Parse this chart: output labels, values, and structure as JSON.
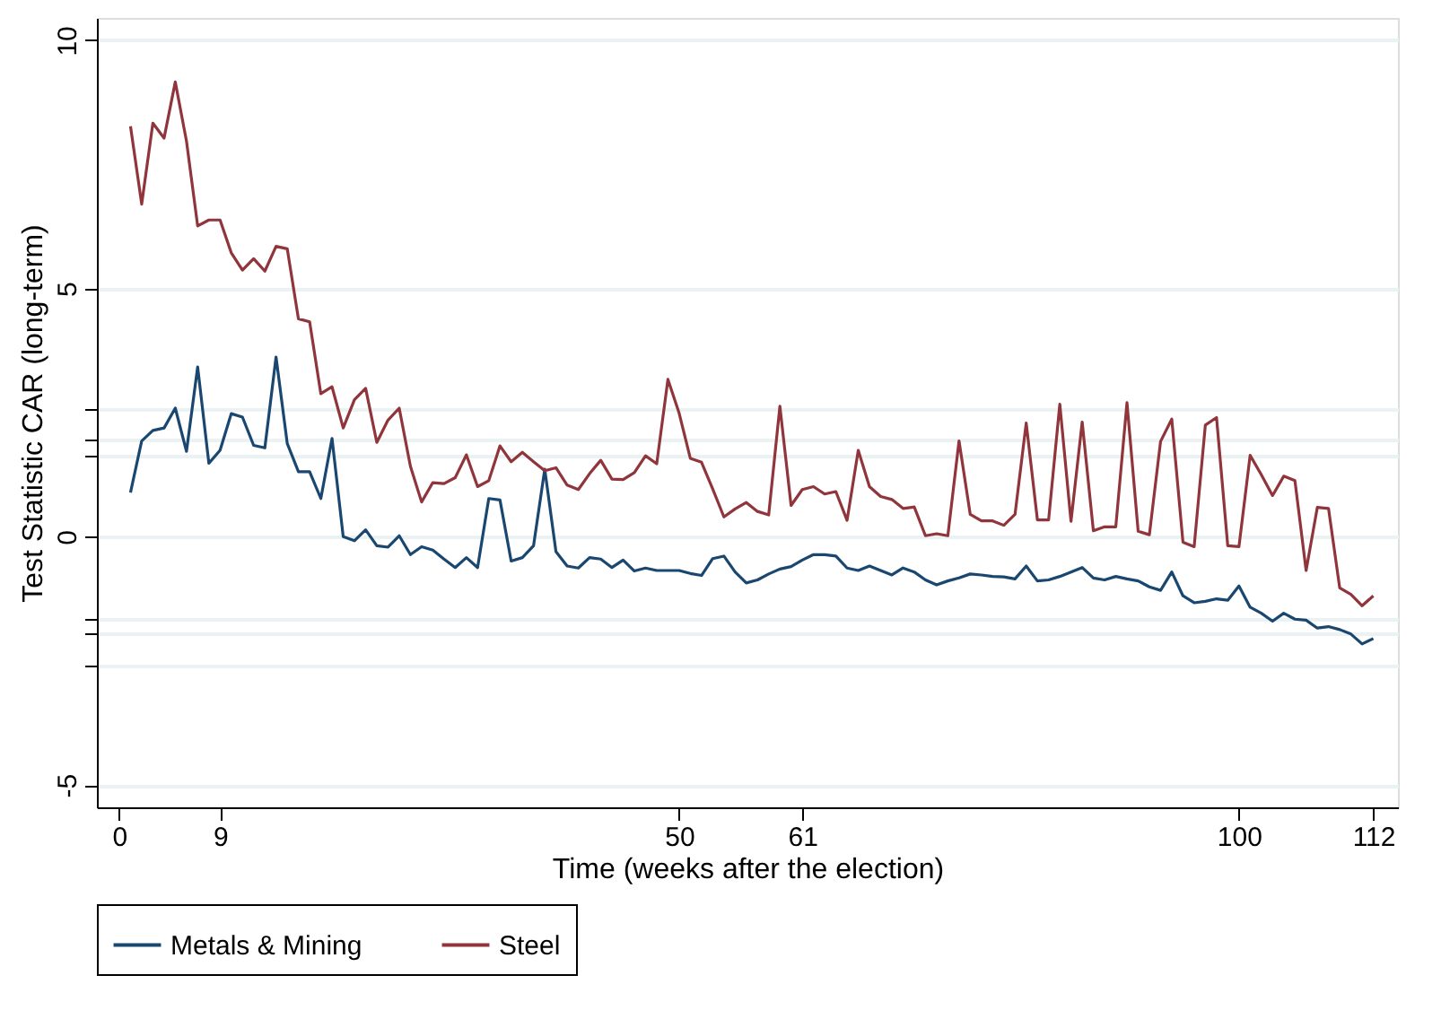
{
  "chart_data": {
    "type": "line",
    "xlabel": "Time (weeks after the election)",
    "ylabel": "Test Statistic CAR (long-term)",
    "x": [
      1,
      2,
      3,
      4,
      5,
      6,
      7,
      8,
      9,
      10,
      11,
      12,
      13,
      14,
      15,
      16,
      17,
      18,
      19,
      20,
      21,
      22,
      23,
      24,
      25,
      26,
      27,
      28,
      29,
      30,
      31,
      32,
      33,
      34,
      35,
      36,
      37,
      38,
      39,
      40,
      41,
      42,
      43,
      44,
      45,
      46,
      47,
      48,
      49,
      50,
      51,
      52,
      53,
      54,
      55,
      56,
      57,
      58,
      59,
      60,
      61,
      62,
      63,
      64,
      65,
      66,
      67,
      68,
      69,
      70,
      71,
      72,
      73,
      74,
      75,
      76,
      77,
      78,
      79,
      80,
      81,
      82,
      83,
      84,
      85,
      86,
      87,
      88,
      89,
      90,
      91,
      92,
      93,
      94,
      95,
      96,
      97,
      98,
      99,
      100,
      101,
      102,
      103,
      104,
      105,
      106,
      107,
      108,
      109,
      110,
      111,
      112
    ],
    "series": [
      {
        "name": "Metals & Mining",
        "color": "#1a476f",
        "values": [
          0.89,
          1.93,
          2.14,
          2.19,
          2.59,
          1.72,
          3.42,
          1.48,
          1.74,
          2.48,
          2.41,
          1.84,
          1.79,
          3.62,
          1.88,
          1.31,
          1.31,
          0.77,
          1.98,
          0.0,
          -0.08,
          0.14,
          -0.18,
          -0.21,
          0.02,
          -0.36,
          -0.2,
          -0.27,
          -0.45,
          -0.62,
          -0.42,
          -0.62,
          0.77,
          0.74,
          -0.49,
          -0.42,
          -0.18,
          1.36,
          -0.3,
          -0.59,
          -0.63,
          -0.42,
          -0.45,
          -0.62,
          -0.47,
          -0.69,
          -0.63,
          -0.68,
          -0.68,
          -0.68,
          -0.74,
          -0.78,
          -0.44,
          -0.39,
          -0.71,
          -0.93,
          -0.87,
          -0.75,
          -0.65,
          -0.6,
          -0.47,
          -0.36,
          -0.36,
          -0.39,
          -0.63,
          -0.68,
          -0.59,
          -0.68,
          -0.77,
          -0.63,
          -0.71,
          -0.87,
          -0.97,
          -0.89,
          -0.83,
          -0.75,
          -0.77,
          -0.8,
          -0.81,
          -0.85,
          -0.59,
          -0.89,
          -0.87,
          -0.8,
          -0.71,
          -0.62,
          -0.83,
          -0.87,
          -0.8,
          -0.85,
          -0.89,
          -1.01,
          -1.08,
          -0.71,
          -1.19,
          -1.33,
          -1.3,
          -1.25,
          -1.28,
          -0.99,
          -1.42,
          -1.54,
          -1.7,
          -1.54,
          -1.66,
          -1.68,
          -1.84,
          -1.81,
          -1.87,
          -1.96,
          -2.16,
          -2.05
        ]
      },
      {
        "name": "Steel",
        "color": "#90353b",
        "values": [
          8.27,
          6.7,
          8.33,
          8.03,
          9.16,
          7.97,
          6.26,
          6.38,
          6.38,
          5.72,
          5.37,
          5.6,
          5.35,
          5.85,
          5.8,
          4.39,
          4.33,
          2.88,
          3.02,
          2.19,
          2.76,
          2.99,
          1.9,
          2.35,
          2.59,
          1.42,
          0.7,
          1.09,
          1.07,
          1.19,
          1.65,
          1.01,
          1.13,
          1.83,
          1.51,
          1.7,
          1.51,
          1.33,
          1.39,
          1.04,
          0.95,
          1.27,
          1.54,
          1.16,
          1.15,
          1.29,
          1.63,
          1.47,
          3.17,
          2.49,
          1.58,
          1.5,
          0.96,
          0.4,
          0.56,
          0.69,
          0.51,
          0.44,
          2.63,
          0.63,
          0.95,
          1.01,
          0.86,
          0.91,
          0.33,
          1.74,
          1.01,
          0.81,
          0.75,
          0.57,
          0.6,
          0.02,
          0.06,
          0.02,
          1.93,
          0.45,
          0.32,
          0.32,
          0.23,
          0.45,
          2.29,
          0.34,
          0.34,
          2.67,
          0.31,
          2.31,
          0.12,
          0.2,
          0.2,
          2.7,
          0.11,
          0.04,
          1.92,
          2.37,
          -0.11,
          -0.2,
          2.25,
          2.4,
          -0.18,
          -0.2,
          1.64,
          1.25,
          0.83,
          1.22,
          1.13,
          -0.68,
          0.59,
          0.57,
          -1.03,
          -1.16,
          -1.39,
          -1.19
        ]
      }
    ],
    "xlim": [
      -2,
      114.2
    ],
    "xticks": [
      0,
      9,
      50,
      61,
      100,
      112
    ],
    "ylim": [
      -5.45,
      10.45
    ],
    "yticks": [
      -5,
      {
        "value": -2.58,
        "label": null
      },
      {
        "value": -1.96,
        "label": null
      },
      {
        "value": -1.65,
        "label": null
      },
      0,
      {
        "value": 1.65,
        "label": null
      },
      {
        "value": 1.96,
        "label": null
      },
      {
        "value": 2.58,
        "label": null
      },
      5,
      10
    ],
    "grid": "y",
    "legend": "bottom",
    "line_style": "solid"
  }
}
